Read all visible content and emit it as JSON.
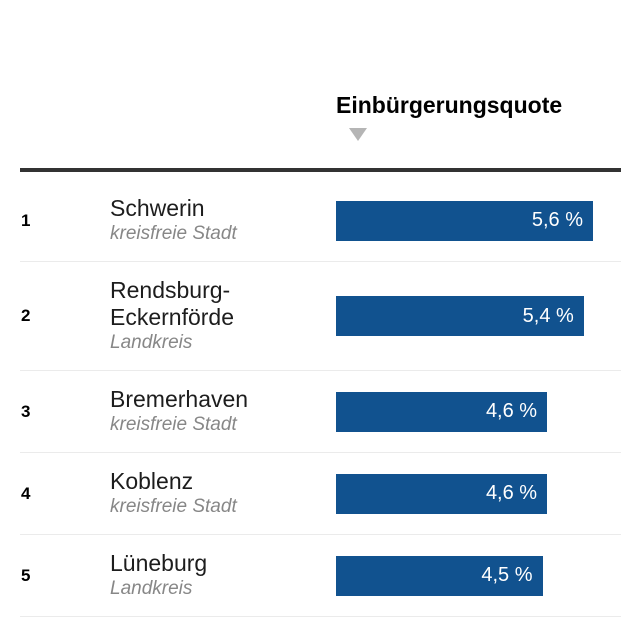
{
  "colors": {
    "bar_fill": "#11528f",
    "header_rule": "#333333",
    "row_separator": "#ebebeb",
    "sort_icon_gray": "#b5b5b5",
    "region_text": "#1d1d1d",
    "subtitle_gray": "#878787",
    "bar_label": "#ffffff"
  },
  "header": {
    "column_label": "Einbürgerungsquote",
    "sort_icon": "triangle-down-icon"
  },
  "chart_data": {
    "type": "bar",
    "title": "Einbürgerungsquote",
    "unit": "%",
    "orientation": "horizontal",
    "value_axis_min": 0,
    "value_axis_max": 5.6,
    "sort": "descending",
    "rows": [
      {
        "rank": "1",
        "name": "Schwerin",
        "type": "kreisfreie Stadt",
        "value": 5.6,
        "label": "5,6 %"
      },
      {
        "rank": "2",
        "name": "Rendsburg-Eckernförde",
        "type": "Landkreis",
        "value": 5.4,
        "label": "5,4 %"
      },
      {
        "rank": "3",
        "name": "Bremerhaven",
        "type": "kreisfreie Stadt",
        "value": 4.6,
        "label": "4,6 %"
      },
      {
        "rank": "4",
        "name": "Koblenz",
        "type": "kreisfreie Stadt",
        "value": 4.6,
        "label": "4,6 %"
      },
      {
        "rank": "5",
        "name": "Lüneburg",
        "type": "Landkreis",
        "value": 4.5,
        "label": "4,5 %"
      }
    ]
  }
}
